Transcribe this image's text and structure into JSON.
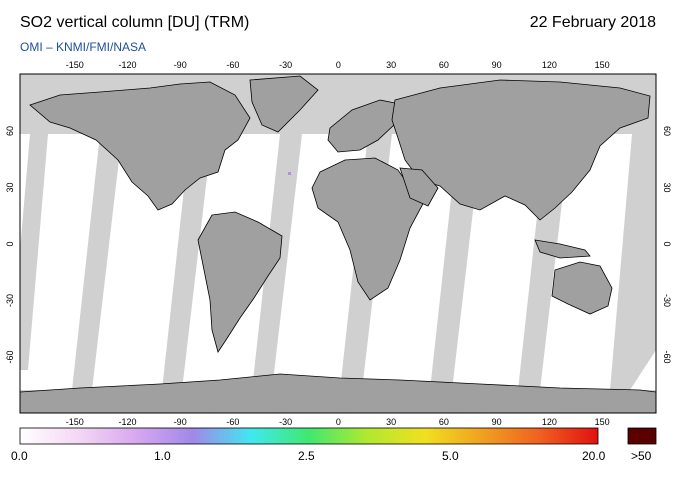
{
  "header": {
    "title": "SO2 vertical column [DU] (TRM)",
    "date": "22 February 2018",
    "credit": "OMI  –  KNMI/FMI/NASA"
  },
  "map": {
    "projection": "equirectangular",
    "lon_ticks": [
      "-150",
      "-120",
      "-90",
      "-60",
      "-30",
      "0",
      "30",
      "60",
      "90",
      "120",
      "150"
    ],
    "lat_ticks": [
      "60",
      "30",
      "0",
      "-30",
      "-60"
    ],
    "colors": {
      "land": "#a0a0a0",
      "no_data": "#d0d0d0",
      "ocean_valid": "#ffffff",
      "coastline": "#000000"
    }
  },
  "colorbar": {
    "labels": [
      "0.0",
      "1.0",
      "2.5",
      "5.0",
      "20.0"
    ],
    "overflow_label": ">50",
    "overflow_color": "#5a0000",
    "gradient_colors": [
      "#ffffff",
      "#f4d8f4",
      "#d8a8f0",
      "#a088e8",
      "#40e8f0",
      "#40e870",
      "#b0e830",
      "#f0e020",
      "#f0a020",
      "#f06020",
      "#e01010"
    ]
  }
}
